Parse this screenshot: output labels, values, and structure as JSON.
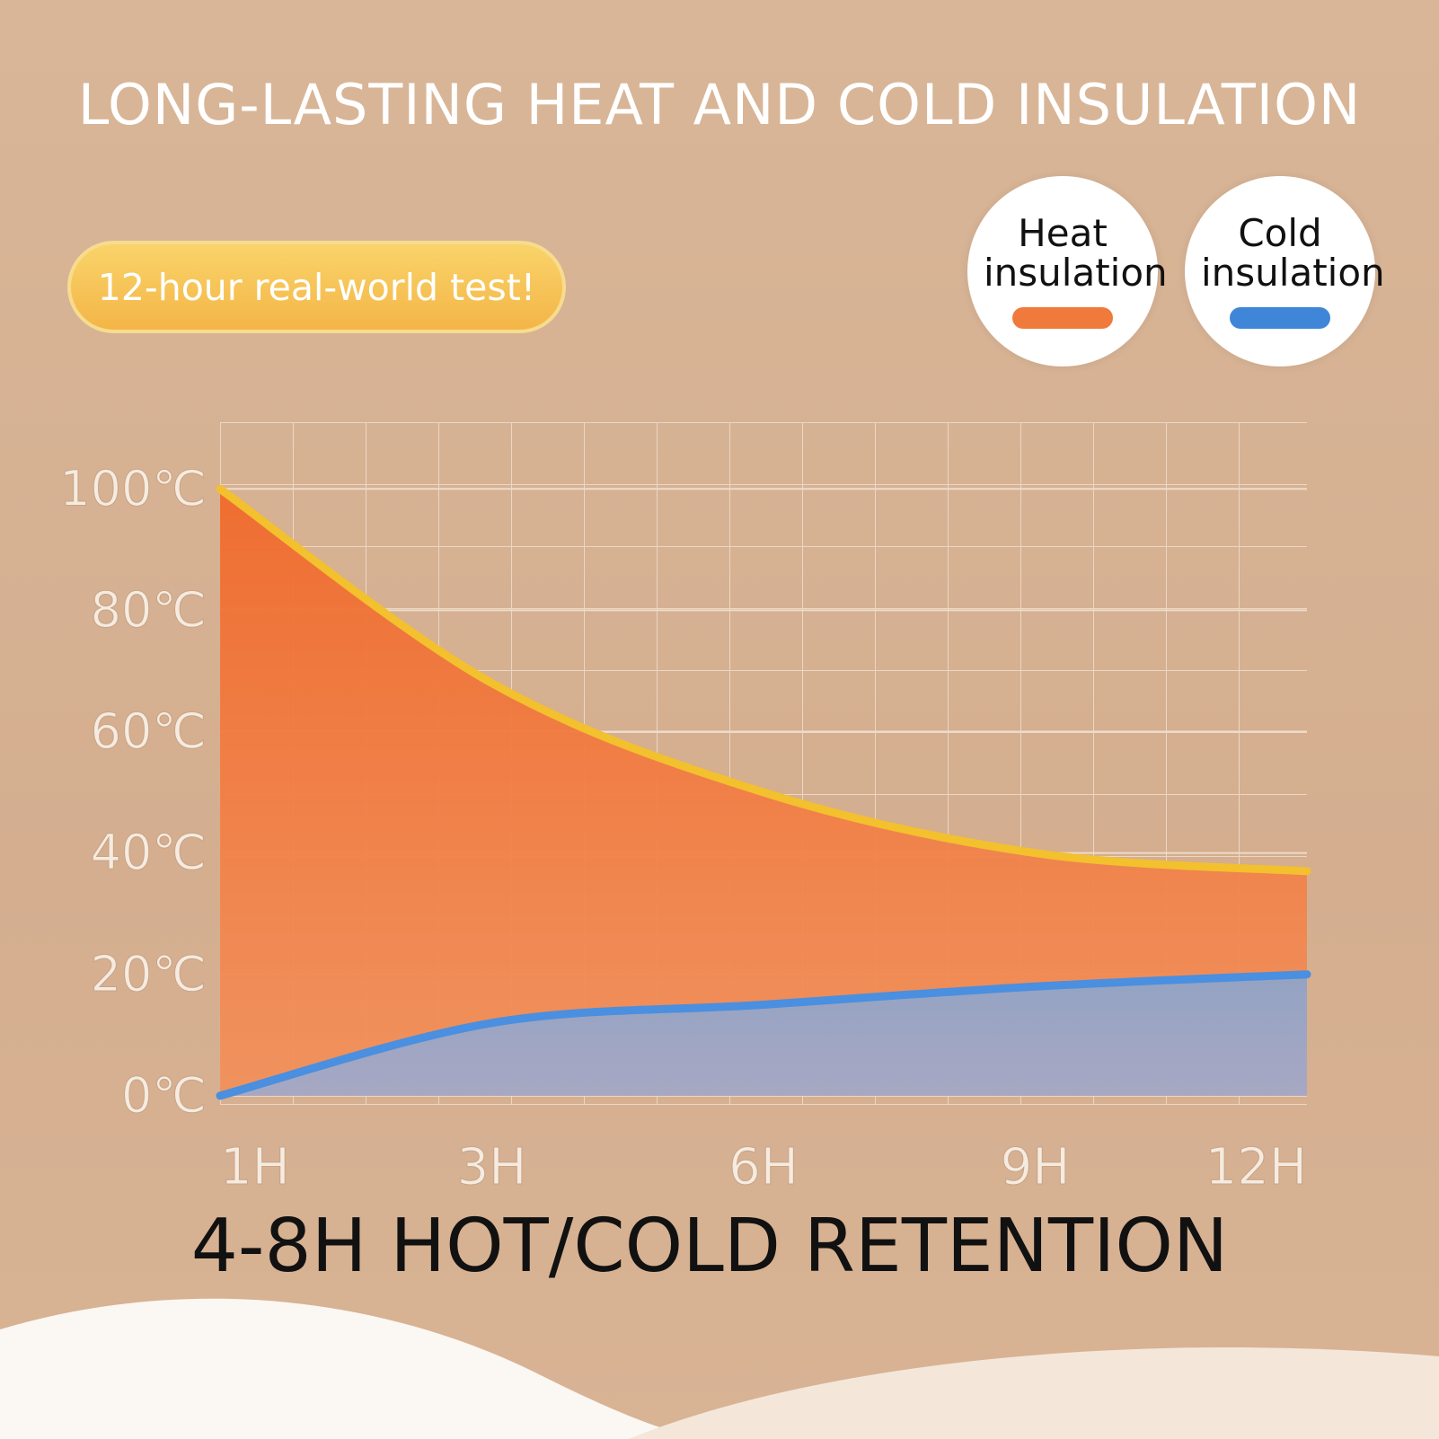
{
  "chart_data": {
    "type": "area",
    "title": "LONG-LASTING HEAT AND COLD INSULATION",
    "annotations": [
      "12-hour real-world test!",
      "4-8H HOT/COLD RETENTION"
    ],
    "categories": [
      "1H",
      "3H",
      "6H",
      "9H",
      "12H"
    ],
    "series": [
      {
        "name": "Heat insulation",
        "color": "#f07a3c",
        "values": [
          100,
          68,
          50,
          40,
          37
        ]
      },
      {
        "name": "Cold insulation",
        "color": "#3f86d8",
        "values": [
          0,
          12,
          15,
          18,
          20
        ]
      }
    ],
    "ylim": [
      -1.5,
      111
    ],
    "yticks": [
      {
        "value": 0,
        "label": "0℃"
      },
      {
        "value": 20,
        "label": "20℃"
      },
      {
        "value": 40,
        "label": "40℃"
      },
      {
        "value": 60,
        "label": "60℃"
      },
      {
        "value": 80,
        "label": "80℃"
      },
      {
        "value": 100,
        "label": "100℃"
      }
    ],
    "grid": true
  }
}
